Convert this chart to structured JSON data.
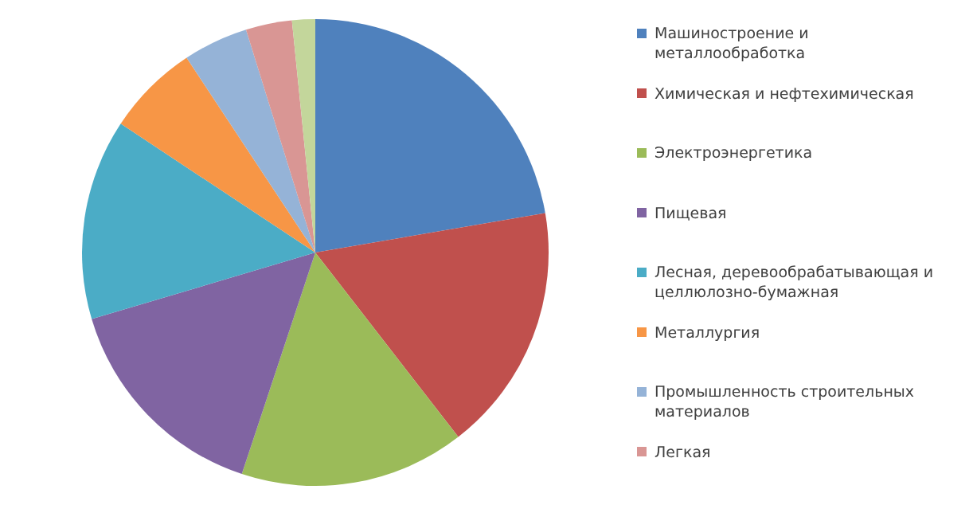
{
  "chart_data": {
    "type": "pie",
    "legend": "right",
    "categories": [
      "Машиностроение и металлообработка",
      "Химическая и нефтехимическая",
      "Электроэнергетика",
      "Пищевая",
      "Лесная, деревообрабатывающая и целлюлозно-бумажная",
      "Металлургия",
      "Промышленность строительных материалов",
      "Легкая",
      null
    ],
    "values": [
      22.3,
      17.2,
      15.6,
      15.3,
      13.9,
      6.4,
      4.5,
      3.2,
      1.6
    ],
    "colors": [
      "#4f81bd",
      "#c0504d",
      "#9bbb59",
      "#8064a2",
      "#4bacc6",
      "#f79646",
      "#95b3d7",
      "#d99694",
      "#c3d69b"
    ]
  }
}
